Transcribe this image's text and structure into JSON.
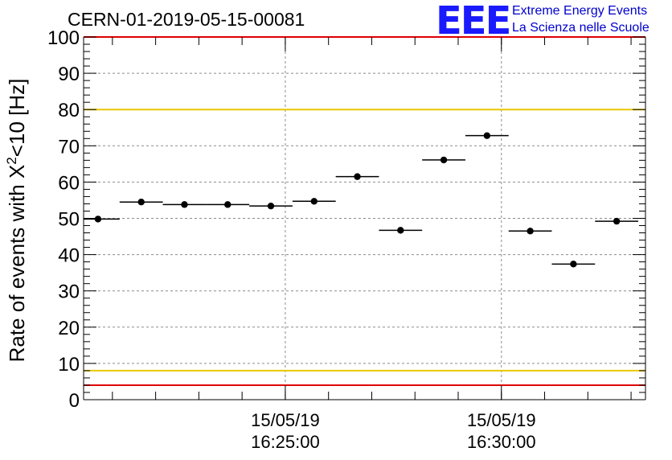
{
  "chart_data": {
    "type": "scatter",
    "title": "CERN-01-2019-05-15-00081",
    "ylabel": "Rate of events with X²<10 [Hz]",
    "ylabel_parts": {
      "pre": "Rate of events with X",
      "sup": "2",
      "post": "<10 [Hz]"
    },
    "xlabel": "",
    "ylim": [
      0,
      100
    ],
    "y_ticks": [
      0,
      10,
      20,
      30,
      40,
      50,
      60,
      70,
      80,
      90,
      100
    ],
    "x_time_range": [
      "16:20:20",
      "16:33:20"
    ],
    "x_ticks": [
      {
        "time": "16:25:00",
        "date_label": "15/05/19",
        "time_label": "16:25:00"
      },
      {
        "time": "16:30:00",
        "date_label": "15/05/19",
        "time_label": "16:30:00"
      }
    ],
    "grid": true,
    "points": [
      {
        "x": "16:20:40",
        "y": 49.8,
        "xerr_s": 30
      },
      {
        "x": "16:21:40",
        "y": 54.5,
        "xerr_s": 30
      },
      {
        "x": "16:22:40",
        "y": 53.8,
        "xerr_s": 30
      },
      {
        "x": "16:23:40",
        "y": 53.8,
        "xerr_s": 30
      },
      {
        "x": "16:24:40",
        "y": 53.4,
        "xerr_s": 30
      },
      {
        "x": "16:25:40",
        "y": 54.7,
        "xerr_s": 30
      },
      {
        "x": "16:26:40",
        "y": 61.5,
        "xerr_s": 30
      },
      {
        "x": "16:27:40",
        "y": 46.7,
        "xerr_s": 30
      },
      {
        "x": "16:28:40",
        "y": 66.1,
        "xerr_s": 30
      },
      {
        "x": "16:29:40",
        "y": 72.8,
        "xerr_s": 30
      },
      {
        "x": "16:30:40",
        "y": 46.5,
        "xerr_s": 30
      },
      {
        "x": "16:31:40",
        "y": 37.4,
        "xerr_s": 30
      },
      {
        "x": "16:32:40",
        "y": 49.2,
        "xerr_s": 30
      }
    ],
    "reference_lines": [
      {
        "y": 80,
        "color": "#e8c800"
      },
      {
        "y": 8,
        "color": "#e8c800"
      },
      {
        "y": 4,
        "color": "#e00000"
      }
    ],
    "frame_top_color": "#e00000"
  },
  "logo": {
    "mark": "EEE",
    "line1": "Extreme Energy Events",
    "line2": "La Scienza nelle Scuole",
    "color": "#1a1aff"
  }
}
